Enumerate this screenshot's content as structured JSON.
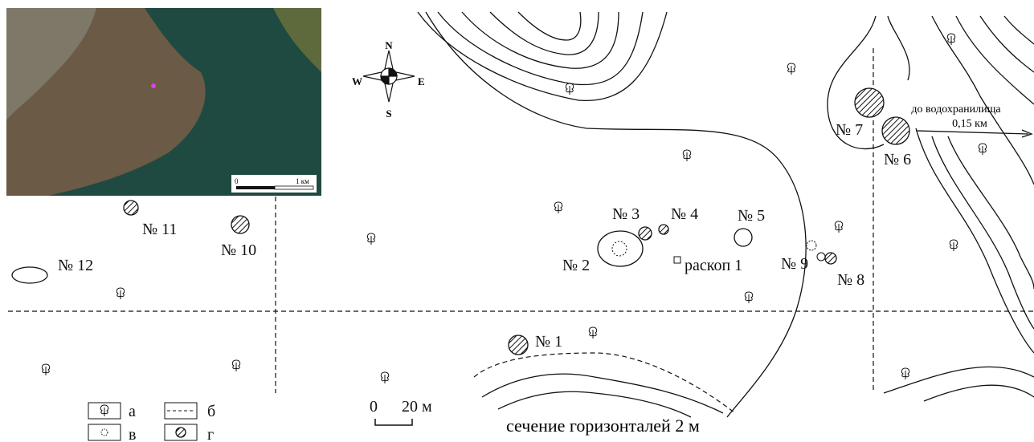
{
  "compass": {
    "n": "N",
    "s": "S",
    "w": "W",
    "e": "E"
  },
  "mounds": [
    "№ 1",
    "№ 2",
    "№ 3",
    "№ 4",
    "№ 5",
    "№ 6",
    "№ 7",
    "№ 8",
    "№ 9",
    "№ 10",
    "№ 11",
    "№ 12"
  ],
  "excavation": "раскоп 1",
  "direction": {
    "label": "до водохранилища",
    "distance": "0,15 км"
  },
  "legend": [
    "а",
    "б",
    "в",
    "г"
  ],
  "scale": {
    "start": "0",
    "end": "20 м"
  },
  "contour_note": "сечение горизонталей 2 м",
  "inset_scale": {
    "start": "0",
    "end": "1 км"
  }
}
